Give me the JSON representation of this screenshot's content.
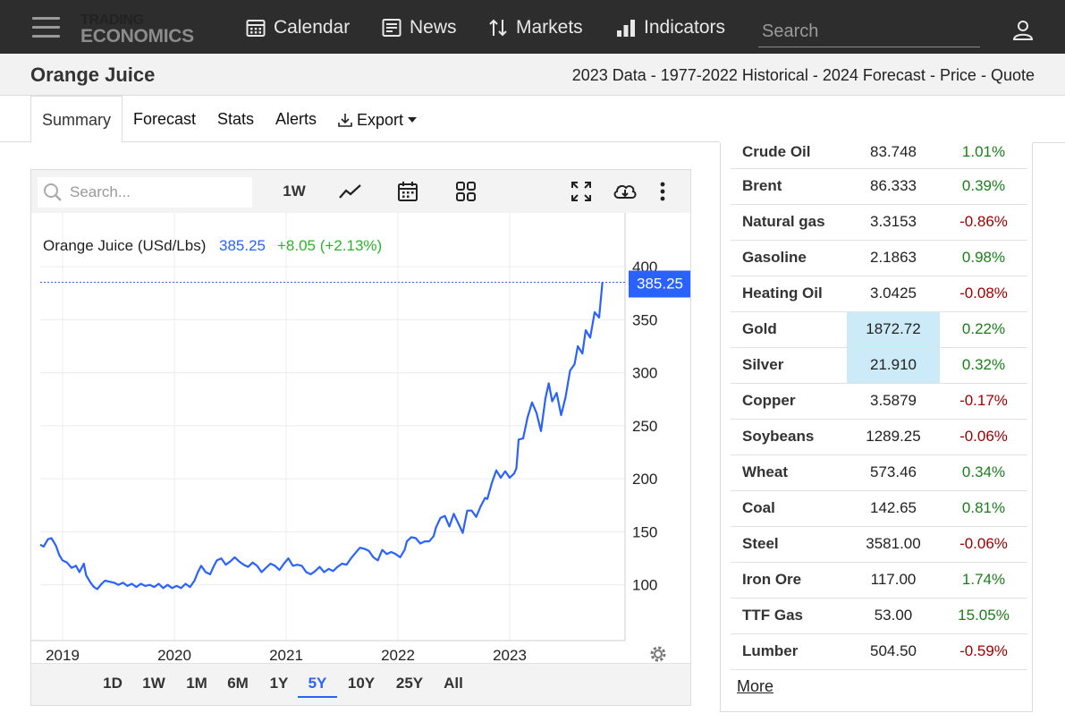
{
  "nav": {
    "logo_line1": "TRADING",
    "logo_line2": "ECONOMICS",
    "items": [
      {
        "label": "Calendar",
        "icon": "calendar-icon"
      },
      {
        "label": "News",
        "icon": "news-icon"
      },
      {
        "label": "Markets",
        "icon": "sort-arrows-icon"
      },
      {
        "label": "Indicators",
        "icon": "bar-chart-icon"
      }
    ],
    "search_placeholder": "Search"
  },
  "title": {
    "page_title": "Orange Juice",
    "links": [
      "2023 Data",
      "1977-2022 Historical",
      "2024 Forecast",
      "Price",
      "Quote"
    ],
    "separator": " - "
  },
  "tabs": [
    {
      "label": "Summary",
      "active": true
    },
    {
      "label": "Forecast",
      "active": false
    },
    {
      "label": "Stats",
      "active": false
    },
    {
      "label": "Alerts",
      "active": false
    },
    {
      "label": "Export",
      "active": false
    }
  ],
  "chart_toolbar": {
    "search_placeholder": "Search...",
    "interval_label": "1W"
  },
  "chart_data": {
    "type": "line",
    "legend_name": "Orange Juice (USd/Lbs)",
    "last_value": "385.25",
    "change": "+8.05 (+2.13%)",
    "price_tag": "385.25",
    "xlim": [
      2018.8,
      2023.92
    ],
    "ylim": [
      50,
      400
    ],
    "yticks": [
      100,
      150,
      200,
      250,
      300,
      350,
      400
    ],
    "xticks": [
      {
        "value": 2019,
        "label": "2019"
      },
      {
        "value": 2020,
        "label": "2020"
      },
      {
        "value": 2021,
        "label": "2021"
      },
      {
        "value": 2022,
        "label": "2022"
      },
      {
        "value": 2023,
        "label": "2023"
      }
    ],
    "line_color": "#2962ff",
    "grid": true,
    "series": [
      {
        "points": [
          [
            2018.8,
            138
          ],
          [
            2018.83,
            136
          ],
          [
            2018.87,
            143
          ],
          [
            2018.9,
            144
          ],
          [
            2018.94,
            137
          ],
          [
            2018.97,
            128
          ],
          [
            2019.0,
            123
          ],
          [
            2019.04,
            121
          ],
          [
            2019.08,
            116
          ],
          [
            2019.12,
            118
          ],
          [
            2019.15,
            112
          ],
          [
            2019.19,
            120
          ],
          [
            2019.21,
            109
          ],
          [
            2019.25,
            102
          ],
          [
            2019.28,
            98
          ],
          [
            2019.31,
            96
          ],
          [
            2019.35,
            101
          ],
          [
            2019.38,
            104
          ],
          [
            2019.42,
            103
          ],
          [
            2019.46,
            102
          ],
          [
            2019.5,
            100
          ],
          [
            2019.54,
            102
          ],
          [
            2019.58,
            99
          ],
          [
            2019.62,
            101
          ],
          [
            2019.66,
            98
          ],
          [
            2019.7,
            101
          ],
          [
            2019.74,
            99
          ],
          [
            2019.78,
            100
          ],
          [
            2019.82,
            98
          ],
          [
            2019.86,
            101
          ],
          [
            2019.9,
            97
          ],
          [
            2019.94,
            100
          ],
          [
            2019.98,
            97
          ],
          [
            2020.02,
            99
          ],
          [
            2020.06,
            97
          ],
          [
            2020.1,
            101
          ],
          [
            2020.14,
            98
          ],
          [
            2020.18,
            104
          ],
          [
            2020.21,
            112
          ],
          [
            2020.24,
            118
          ],
          [
            2020.28,
            112
          ],
          [
            2020.32,
            110
          ],
          [
            2020.35,
            117
          ],
          [
            2020.38,
            123
          ],
          [
            2020.42,
            125
          ],
          [
            2020.46,
            119
          ],
          [
            2020.5,
            122
          ],
          [
            2020.54,
            126
          ],
          [
            2020.58,
            122
          ],
          [
            2020.62,
            119
          ],
          [
            2020.66,
            117
          ],
          [
            2020.7,
            121
          ],
          [
            2020.74,
            118
          ],
          [
            2020.78,
            112
          ],
          [
            2020.82,
            116
          ],
          [
            2020.86,
            120
          ],
          [
            2020.9,
            118
          ],
          [
            2020.94,
            114
          ],
          [
            2020.98,
            120
          ],
          [
            2021.02,
            125
          ],
          [
            2021.06,
            118
          ],
          [
            2021.1,
            119
          ],
          [
            2021.14,
            118
          ],
          [
            2021.18,
            112
          ],
          [
            2021.22,
            110
          ],
          [
            2021.26,
            113
          ],
          [
            2021.3,
            117
          ],
          [
            2021.34,
            112
          ],
          [
            2021.38,
            115
          ],
          [
            2021.42,
            113
          ],
          [
            2021.46,
            117
          ],
          [
            2021.5,
            120
          ],
          [
            2021.54,
            119
          ],
          [
            2021.58,
            125
          ],
          [
            2021.62,
            130
          ],
          [
            2021.66,
            135
          ],
          [
            2021.7,
            134
          ],
          [
            2021.74,
            132
          ],
          [
            2021.78,
            126
          ],
          [
            2021.82,
            123
          ],
          [
            2021.86,
            133
          ],
          [
            2021.9,
            129
          ],
          [
            2021.94,
            131
          ],
          [
            2021.98,
            129
          ],
          [
            2022.02,
            126
          ],
          [
            2022.06,
            133
          ],
          [
            2022.08,
            141
          ],
          [
            2022.12,
            145
          ],
          [
            2022.16,
            144
          ],
          [
            2022.2,
            139
          ],
          [
            2022.24,
            141
          ],
          [
            2022.28,
            141
          ],
          [
            2022.32,
            146
          ],
          [
            2022.34,
            154
          ],
          [
            2022.38,
            163
          ],
          [
            2022.42,
            165
          ],
          [
            2022.46,
            155
          ],
          [
            2022.5,
            167
          ],
          [
            2022.54,
            158
          ],
          [
            2022.58,
            149
          ],
          [
            2022.62,
            170
          ],
          [
            2022.66,
            170
          ],
          [
            2022.7,
            164
          ],
          [
            2022.74,
            174
          ],
          [
            2022.78,
            182
          ],
          [
            2022.8,
            181
          ],
          [
            2022.84,
            196
          ],
          [
            2022.88,
            208
          ],
          [
            2022.92,
            201
          ],
          [
            2022.96,
            207
          ],
          [
            2023.0,
            201
          ],
          [
            2023.04,
            205
          ],
          [
            2023.06,
            210
          ],
          [
            2023.08,
            237
          ],
          [
            2023.12,
            238
          ],
          [
            2023.16,
            258
          ],
          [
            2023.2,
            272
          ],
          [
            2023.24,
            262
          ],
          [
            2023.28,
            245
          ],
          [
            2023.32,
            276
          ],
          [
            2023.35,
            290
          ],
          [
            2023.38,
            273
          ],
          [
            2023.42,
            281
          ],
          [
            2023.46,
            260
          ],
          [
            2023.5,
            277
          ],
          [
            2023.54,
            302
          ],
          [
            2023.58,
            308
          ],
          [
            2023.61,
            325
          ],
          [
            2023.65,
            318
          ],
          [
            2023.68,
            340
          ],
          [
            2023.72,
            333
          ],
          [
            2023.76,
            357
          ],
          [
            2023.8,
            352
          ],
          [
            2023.83,
            385.25
          ]
        ]
      }
    ]
  },
  "ranges": [
    {
      "label": "1D",
      "active": false
    },
    {
      "label": "1W",
      "active": false
    },
    {
      "label": "1M",
      "active": false
    },
    {
      "label": "6M",
      "active": false
    },
    {
      "label": "1Y",
      "active": false
    },
    {
      "label": "5Y",
      "active": true
    },
    {
      "label": "10Y",
      "active": false
    },
    {
      "label": "25Y",
      "active": false
    },
    {
      "label": "All",
      "active": false
    }
  ],
  "commodities": [
    {
      "name": "Crude Oil",
      "value": "83.748",
      "change": "1.01%",
      "dir": "pos",
      "highlight": false
    },
    {
      "name": "Brent",
      "value": "86.333",
      "change": "0.39%",
      "dir": "pos",
      "highlight": false
    },
    {
      "name": "Natural gas",
      "value": "3.3153",
      "change": "-0.86%",
      "dir": "neg",
      "highlight": false
    },
    {
      "name": "Gasoline",
      "value": "2.1863",
      "change": "0.98%",
      "dir": "pos",
      "highlight": false
    },
    {
      "name": "Heating Oil",
      "value": "3.0425",
      "change": "-0.08%",
      "dir": "neg",
      "highlight": false
    },
    {
      "name": "Gold",
      "value": "1872.72",
      "change": "0.22%",
      "dir": "pos",
      "highlight": true
    },
    {
      "name": "Silver",
      "value": "21.910",
      "change": "0.32%",
      "dir": "pos",
      "highlight": true
    },
    {
      "name": "Copper",
      "value": "3.5879",
      "change": "-0.17%",
      "dir": "neg",
      "highlight": false
    },
    {
      "name": "Soybeans",
      "value": "1289.25",
      "change": "-0.06%",
      "dir": "neg",
      "highlight": false
    },
    {
      "name": "Wheat",
      "value": "573.46",
      "change": "0.34%",
      "dir": "pos",
      "highlight": false
    },
    {
      "name": "Coal",
      "value": "142.65",
      "change": "0.81%",
      "dir": "pos",
      "highlight": false
    },
    {
      "name": "Steel",
      "value": "3581.00",
      "change": "-0.06%",
      "dir": "neg",
      "highlight": false
    },
    {
      "name": "Iron Ore",
      "value": "117.00",
      "change": "1.74%",
      "dir": "pos",
      "highlight": false
    },
    {
      "name": "TTF Gas",
      "value": "53.00",
      "change": "15.05%",
      "dir": "pos",
      "highlight": false
    },
    {
      "name": "Lumber",
      "value": "504.50",
      "change": "-0.59%",
      "dir": "neg",
      "highlight": false
    }
  ],
  "more_label": "More"
}
